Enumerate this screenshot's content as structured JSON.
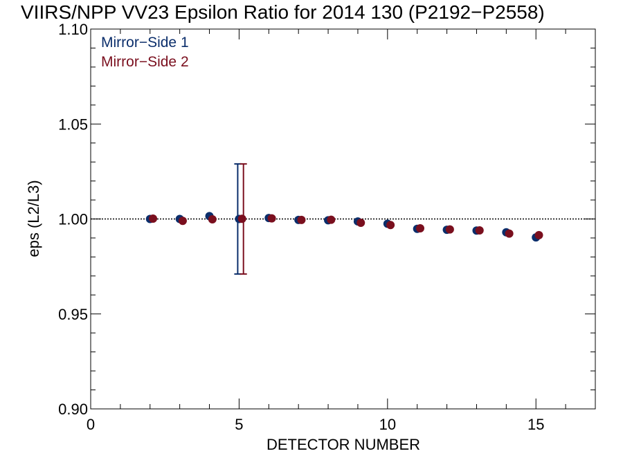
{
  "chart_data": {
    "type": "scatter",
    "title": "VIIRS/NPP VV23 Epsilon Ratio for 2014 130 (P2192−P2558)",
    "xlabel": "DETECTOR NUMBER",
    "ylabel": "eps (L2/L3)",
    "xlim": [
      0,
      17
    ],
    "ylim": [
      0.9,
      1.1
    ],
    "x_ticks": [
      0,
      5,
      10,
      15
    ],
    "x_tick_labels": [
      "0",
      "5",
      "10",
      "15"
    ],
    "y_ticks": [
      0.9,
      0.95,
      1.0,
      1.05,
      1.1
    ],
    "y_tick_labels": [
      "0.90",
      "0.95",
      "1.00",
      "1.05",
      "1.10"
    ],
    "reference_line": 1.0,
    "grid": false,
    "legend_placement": "top-left",
    "series": [
      {
        "name": "Mirror−Side 1",
        "color": "#0b2e6b",
        "x": [
          2,
          3,
          4,
          5,
          6,
          7,
          8,
          9,
          10,
          11,
          12,
          13,
          14,
          15
        ],
        "y": [
          1.0,
          1.0,
          1.0015,
          1.0,
          1.0005,
          0.9995,
          0.9993,
          0.9987,
          0.9975,
          0.9948,
          0.9943,
          0.9939,
          0.993,
          0.9903
        ],
        "error_bars": [
          {
            "x": 5,
            "low": 0.971,
            "high": 1.029
          }
        ]
      },
      {
        "name": "Mirror−Side 2",
        "color": "#7a0f1e",
        "x": [
          2.1,
          3.1,
          4.1,
          5.1,
          6.1,
          7.1,
          8.1,
          9.1,
          10.1,
          11.1,
          12.1,
          13.1,
          14.1,
          15.1
        ],
        "y": [
          1.0002,
          0.999,
          0.9998,
          1.0001,
          1.0003,
          0.9995,
          0.9996,
          0.998,
          0.9968,
          0.9951,
          0.9945,
          0.994,
          0.9923,
          0.9915
        ],
        "error_bars": [
          {
            "x": 5.1,
            "low": 0.971,
            "high": 1.029
          }
        ]
      }
    ]
  }
}
